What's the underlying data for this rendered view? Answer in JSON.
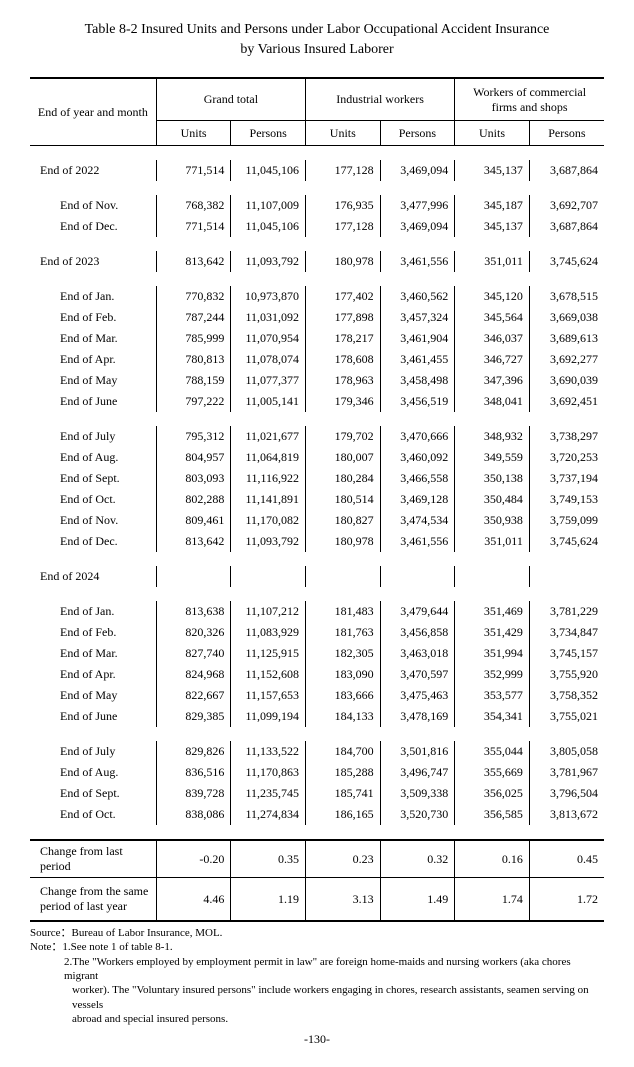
{
  "title_line1": "Table 8-2 Insured Units and Persons under Labor Occupational Accident Insurance",
  "title_line2": "by Various Insured Laborer",
  "headers": {
    "row_label": "End of year and month",
    "g1": "Grand total",
    "g2": "Industrial workers",
    "g3": "Workers of commercial firms and shops",
    "units": "Units",
    "persons": "Persons"
  },
  "rows": [
    {
      "t": "y",
      "label": "End of 2022",
      "v": [
        "771,514",
        "11,045,106",
        "177,128",
        "3,469,094",
        "345,137",
        "3,687,864"
      ]
    },
    {
      "t": "sp"
    },
    {
      "t": "m",
      "label": "End of Nov.",
      "v": [
        "768,382",
        "11,107,009",
        "176,935",
        "3,477,996",
        "345,187",
        "3,692,707"
      ]
    },
    {
      "t": "m",
      "label": "End of Dec.",
      "v": [
        "771,514",
        "11,045,106",
        "177,128",
        "3,469,094",
        "345,137",
        "3,687,864"
      ]
    },
    {
      "t": "sp"
    },
    {
      "t": "y",
      "label": "End of 2023",
      "v": [
        "813,642",
        "11,093,792",
        "180,978",
        "3,461,556",
        "351,011",
        "3,745,624"
      ]
    },
    {
      "t": "sp"
    },
    {
      "t": "m",
      "label": "End of Jan.",
      "v": [
        "770,832",
        "10,973,870",
        "177,402",
        "3,460,562",
        "345,120",
        "3,678,515"
      ]
    },
    {
      "t": "m",
      "label": "End of Feb.",
      "v": [
        "787,244",
        "11,031,092",
        "177,898",
        "3,457,324",
        "345,564",
        "3,669,038"
      ]
    },
    {
      "t": "m",
      "label": "End of Mar.",
      "v": [
        "785,999",
        "11,070,954",
        "178,217",
        "3,461,904",
        "346,037",
        "3,689,613"
      ]
    },
    {
      "t": "m",
      "label": "End of Apr.",
      "v": [
        "780,813",
        "11,078,074",
        "178,608",
        "3,461,455",
        "346,727",
        "3,692,277"
      ]
    },
    {
      "t": "m",
      "label": "End of May",
      "v": [
        "788,159",
        "11,077,377",
        "178,963",
        "3,458,498",
        "347,396",
        "3,690,039"
      ]
    },
    {
      "t": "m",
      "label": "End of June",
      "v": [
        "797,222",
        "11,005,141",
        "179,346",
        "3,456,519",
        "348,041",
        "3,692,451"
      ]
    },
    {
      "t": "sp"
    },
    {
      "t": "m",
      "label": "End of July",
      "v": [
        "795,312",
        "11,021,677",
        "179,702",
        "3,470,666",
        "348,932",
        "3,738,297"
      ]
    },
    {
      "t": "m",
      "label": "End of Aug.",
      "v": [
        "804,957",
        "11,064,819",
        "180,007",
        "3,460,092",
        "349,559",
        "3,720,253"
      ]
    },
    {
      "t": "m",
      "label": "End of Sept.",
      "v": [
        "803,093",
        "11,116,922",
        "180,284",
        "3,466,558",
        "350,138",
        "3,737,194"
      ]
    },
    {
      "t": "m",
      "label": "End of Oct.",
      "v": [
        "802,288",
        "11,141,891",
        "180,514",
        "3,469,128",
        "350,484",
        "3,749,153"
      ]
    },
    {
      "t": "m",
      "label": "End of Nov.",
      "v": [
        "809,461",
        "11,170,082",
        "180,827",
        "3,474,534",
        "350,938",
        "3,759,099"
      ]
    },
    {
      "t": "m",
      "label": "End of Dec.",
      "v": [
        "813,642",
        "11,093,792",
        "180,978",
        "3,461,556",
        "351,011",
        "3,745,624"
      ]
    },
    {
      "t": "sp"
    },
    {
      "t": "y",
      "label": "End of 2024",
      "v": [
        "",
        "",
        "",
        "",
        "",
        ""
      ]
    },
    {
      "t": "sp"
    },
    {
      "t": "m",
      "label": "End of Jan.",
      "v": [
        "813,638",
        "11,107,212",
        "181,483",
        "3,479,644",
        "351,469",
        "3,781,229"
      ]
    },
    {
      "t": "m",
      "label": "End of Feb.",
      "v": [
        "820,326",
        "11,083,929",
        "181,763",
        "3,456,858",
        "351,429",
        "3,734,847"
      ]
    },
    {
      "t": "m",
      "label": "End of Mar.",
      "v": [
        "827,740",
        "11,125,915",
        "182,305",
        "3,463,018",
        "351,994",
        "3,745,157"
      ]
    },
    {
      "t": "m",
      "label": "End of Apr.",
      "v": [
        "824,968",
        "11,152,608",
        "183,090",
        "3,470,597",
        "352,999",
        "3,755,920"
      ]
    },
    {
      "t": "m",
      "label": "End of May",
      "v": [
        "822,667",
        "11,157,653",
        "183,666",
        "3,475,463",
        "353,577",
        "3,758,352"
      ]
    },
    {
      "t": "m",
      "label": "End of June",
      "v": [
        "829,385",
        "11,099,194",
        "184,133",
        "3,478,169",
        "354,341",
        "3,755,021"
      ]
    },
    {
      "t": "sp"
    },
    {
      "t": "m",
      "label": "End of July",
      "v": [
        "829,826",
        "11,133,522",
        "184,700",
        "3,501,816",
        "355,044",
        "3,805,058"
      ]
    },
    {
      "t": "m",
      "label": "End of Aug.",
      "v": [
        "836,516",
        "11,170,863",
        "185,288",
        "3,496,747",
        "355,669",
        "3,781,967"
      ]
    },
    {
      "t": "m",
      "label": "End of Sept.",
      "v": [
        "839,728",
        "11,235,745",
        "185,741",
        "3,509,338",
        "356,025",
        "3,796,504"
      ]
    },
    {
      "t": "m",
      "label": "End of Oct.",
      "v": [
        "838,086",
        "11,274,834",
        "186,165",
        "3,520,730",
        "356,585",
        "3,813,672"
      ]
    }
  ],
  "change_last": {
    "label": "Change from last period",
    "v": [
      "-0.20",
      "0.35",
      "0.23",
      "0.32",
      "0.16",
      "0.45"
    ]
  },
  "change_year": {
    "label": "Change from the same period of last year",
    "v": [
      "4.46",
      "1.19",
      "3.13",
      "1.49",
      "1.74",
      "1.72"
    ]
  },
  "source": "Source：Bureau of Labor Insurance, MOL.",
  "note1": "Note：1.See note 1 of table 8-1.",
  "note2a": "2.The \"Workers employed by employment permit in law\" are foreign home-maids and nursing workers (aka chores migrant",
  "note2b": "worker). The \"Voluntary insured persons\" include workers engaging in chores, research assistants, seamen serving on vessels",
  "note2c": "abroad and special insured persons.",
  "page": "-130-"
}
